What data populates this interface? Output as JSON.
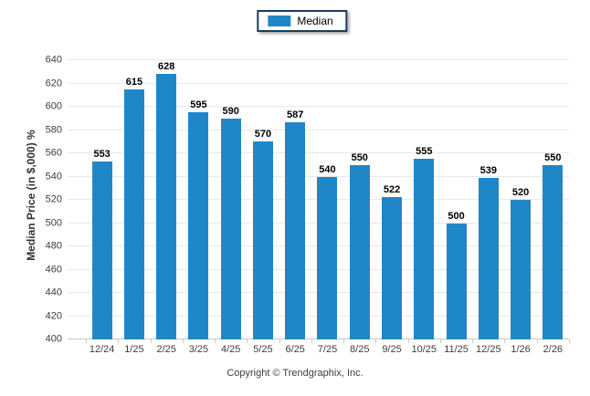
{
  "legend": {
    "items": [
      {
        "label": "Median",
        "swatch_color": "#1f87c8"
      }
    ]
  },
  "footer": {
    "copyright": "Copyright © Trendgraphix, Inc."
  },
  "colors": {
    "bar": "#1f87c8",
    "gridline": "#e9e9e9",
    "axis_line": "#c9c9c9",
    "tick_text": "#3d3d3d",
    "value_label": "#000000",
    "legend_border": "#1c3c5e"
  },
  "chart_data": {
    "type": "bar",
    "title": "",
    "xlabel": "",
    "ylabel": "Median Price (in $,000) %",
    "categories": [
      "12/24",
      "1/25",
      "2/25",
      "3/25",
      "4/25",
      "5/25",
      "6/25",
      "7/25",
      "8/25",
      "9/25",
      "10/25",
      "11/25",
      "12/25",
      "1/26",
      "2/26"
    ],
    "series": [
      {
        "name": "Median",
        "values": [
          553,
          615,
          628,
          595,
          590,
          570,
          587,
          540,
          550,
          522,
          555,
          500,
          539,
          520,
          550
        ]
      }
    ],
    "ylim": [
      400,
      640
    ],
    "ytick_step": 20,
    "grid": "horizontal",
    "legend_position": "top-center",
    "value_labels": true,
    "bar_color": "#1f87c8"
  }
}
